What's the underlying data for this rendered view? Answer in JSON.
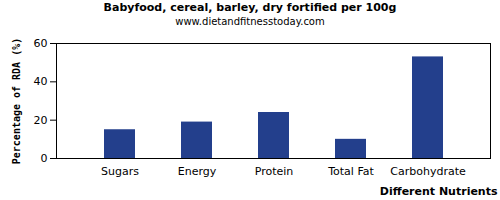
{
  "chart_data": {
    "type": "bar",
    "title": "Babyfood, cereal, barley, dry fortified per 100g",
    "subtitle": "www.dietandfitnesstoday.com",
    "x_label": "Different Nutrients",
    "y_label": "Percentage of RDA (%)",
    "categories": [
      "Sugars",
      "Energy",
      "Protein",
      "Total Fat",
      "Carbohydrate"
    ],
    "values": [
      15,
      19,
      24,
      10,
      53
    ],
    "color": "#233f8c",
    "ylim": [
      0,
      60
    ],
    "yticks": [
      0,
      20,
      40,
      60
    ],
    "grid": false
  }
}
